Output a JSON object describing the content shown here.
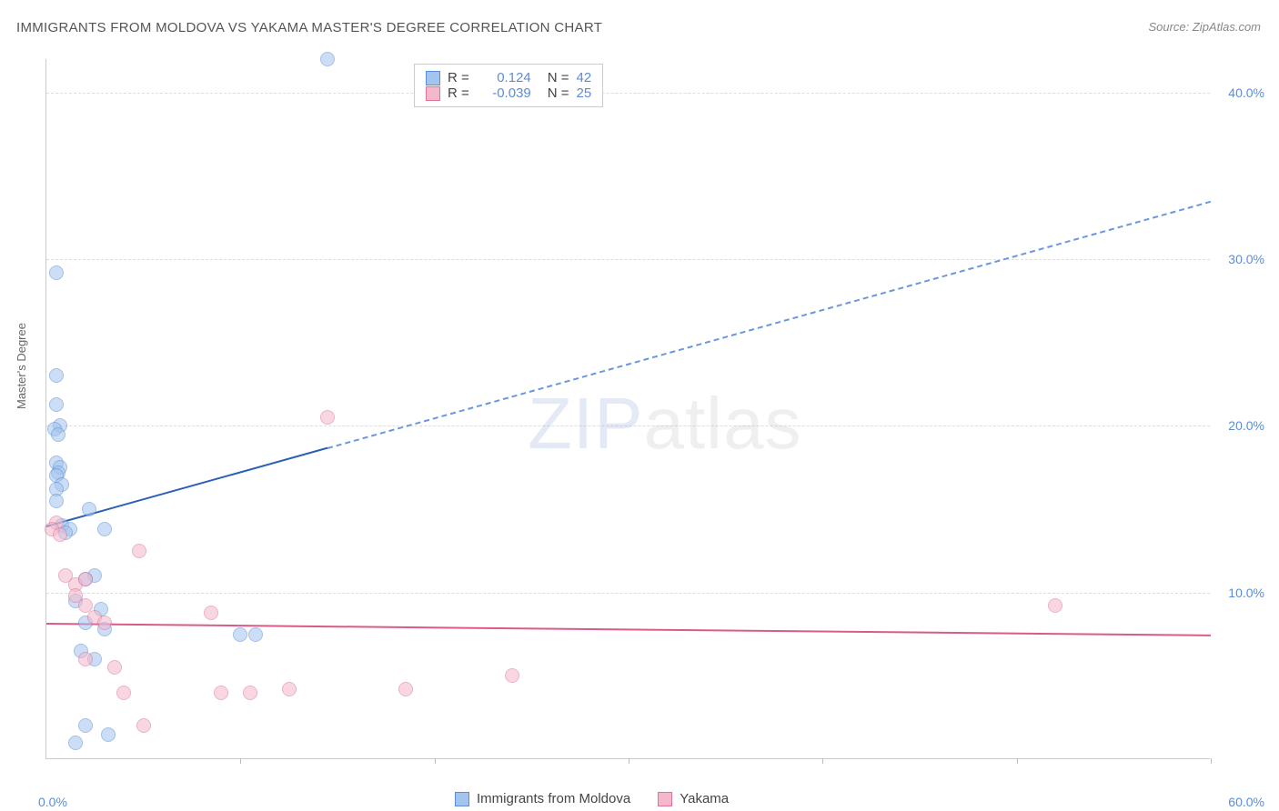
{
  "title": "IMMIGRANTS FROM MOLDOVA VS YAKAMA MASTER'S DEGREE CORRELATION CHART",
  "source": "Source: ZipAtlas.com",
  "yaxis_title": "Master's Degree",
  "watermark": {
    "zip": "ZIP",
    "atlas": "atlas"
  },
  "chart": {
    "type": "scatter",
    "background_color": "#ffffff",
    "grid_color": "#dddddd",
    "axis_color": "#cccccc",
    "tick_label_color": "#5b8dd6",
    "xlim": [
      0,
      60
    ],
    "ylim": [
      0,
      42
    ],
    "yticks": [
      10,
      20,
      30,
      40
    ],
    "ytick_labels": [
      "10.0%",
      "20.0%",
      "30.0%",
      "40.0%"
    ],
    "x_origin_label": "0.0%",
    "x_end_label": "60.0%",
    "xtick_positions": [
      10,
      20,
      30,
      40,
      50,
      60
    ],
    "point_radius": 8,
    "point_opacity": 0.55,
    "series": [
      {
        "name": "Immigrants from Moldova",
        "color_fill": "#a3c4ee",
        "color_stroke": "#5b8dd6",
        "R": "0.124",
        "N": "42",
        "trend": {
          "y_at_x0": 14.0,
          "y_at_x60": 33.5,
          "solid_until_x": 14.5,
          "solid_color": "#2b5fb5",
          "dash_color": "#6a98db",
          "width": 2
        },
        "points": [
          [
            0.5,
            29.2
          ],
          [
            0.5,
            23.0
          ],
          [
            0.5,
            21.3
          ],
          [
            0.7,
            20.0
          ],
          [
            0.4,
            19.8
          ],
          [
            0.6,
            19.5
          ],
          [
            0.5,
            17.8
          ],
          [
            0.7,
            17.5
          ],
          [
            0.6,
            17.2
          ],
          [
            0.5,
            17.0
          ],
          [
            0.8,
            16.5
          ],
          [
            0.5,
            16.2
          ],
          [
            0.5,
            15.5
          ],
          [
            0.8,
            14.0
          ],
          [
            1.2,
            13.8
          ],
          [
            1.0,
            13.6
          ],
          [
            2.2,
            15.0
          ],
          [
            3.0,
            13.8
          ],
          [
            2.5,
            11.0
          ],
          [
            2.0,
            10.8
          ],
          [
            1.5,
            9.5
          ],
          [
            2.8,
            9.0
          ],
          [
            2.0,
            8.2
          ],
          [
            3.0,
            7.8
          ],
          [
            1.8,
            6.5
          ],
          [
            2.5,
            6.0
          ],
          [
            2.0,
            2.0
          ],
          [
            1.5,
            1.0
          ],
          [
            3.2,
            1.5
          ],
          [
            10.0,
            7.5
          ],
          [
            10.8,
            7.5
          ],
          [
            14.5,
            42.0
          ]
        ]
      },
      {
        "name": "Yakama",
        "color_fill": "#f4b8ca",
        "color_stroke": "#e0739b",
        "R": "-0.039",
        "N": "25",
        "trend": {
          "y_at_x0": 8.2,
          "y_at_x60": 7.5,
          "solid_until_x": 60,
          "solid_color": "#d85b88",
          "dash_color": "#d85b88",
          "width": 2
        },
        "points": [
          [
            0.5,
            14.2
          ],
          [
            0.3,
            13.8
          ],
          [
            0.7,
            13.5
          ],
          [
            1.0,
            11.0
          ],
          [
            1.5,
            10.5
          ],
          [
            2.0,
            10.8
          ],
          [
            1.5,
            9.8
          ],
          [
            2.0,
            9.2
          ],
          [
            4.8,
            12.5
          ],
          [
            2.5,
            8.5
          ],
          [
            3.0,
            8.2
          ],
          [
            2.0,
            6.0
          ],
          [
            3.5,
            5.5
          ],
          [
            4.0,
            4.0
          ],
          [
            5.0,
            2.0
          ],
          [
            8.5,
            8.8
          ],
          [
            9.0,
            4.0
          ],
          [
            10.5,
            4.0
          ],
          [
            12.5,
            4.2
          ],
          [
            14.5,
            20.5
          ],
          [
            18.5,
            4.2
          ],
          [
            24.0,
            5.0
          ],
          [
            52.0,
            9.2
          ]
        ]
      }
    ]
  },
  "legend_top": {
    "r_label": "R =",
    "n_label": "N ="
  },
  "legend_bottom": {
    "items": [
      "Immigrants from Moldova",
      "Yakama"
    ]
  }
}
